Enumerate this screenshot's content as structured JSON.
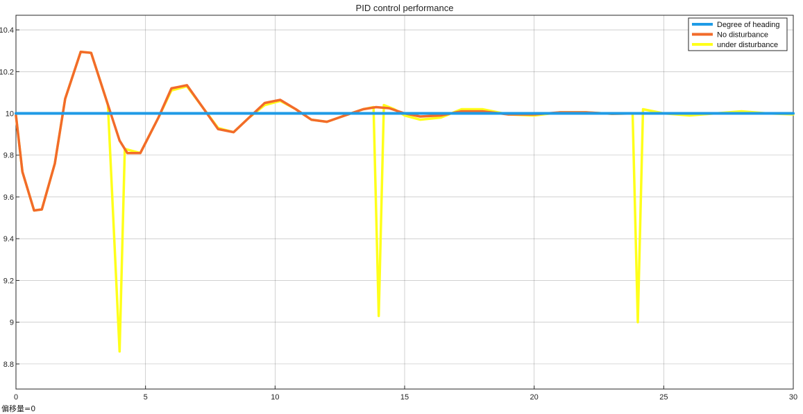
{
  "footer": {
    "offset_label": "偏移量=0"
  },
  "chart_data": {
    "type": "line",
    "title": "PID control performance",
    "xlabel": "",
    "ylabel": "",
    "xlim": [
      0,
      30
    ],
    "ylim": [
      8.68,
      10.47
    ],
    "xticks": [
      0,
      5,
      10,
      15,
      20,
      25,
      30
    ],
    "yticks": [
      8.8,
      9,
      9.2,
      9.4,
      9.6,
      9.8,
      10,
      10.2,
      10.4
    ],
    "grid": true,
    "legend_position": "top-right",
    "colors": {
      "heading": "#1f9be6",
      "no_disturbance": "#f26b2a",
      "under_disturbance": "#ffff1a"
    },
    "series": [
      {
        "name": "Degree of heading",
        "color": "#1f9be6",
        "x": [
          0,
          30
        ],
        "y": [
          10.0,
          10.0
        ]
      },
      {
        "name": "No disturbance",
        "color": "#f26b2a",
        "x": [
          0,
          0.25,
          0.7,
          1.0,
          1.5,
          1.9,
          2.5,
          2.9,
          3.5,
          4.0,
          4.3,
          4.8,
          5.5,
          6.0,
          6.6,
          7.2,
          7.8,
          8.4,
          9.0,
          9.6,
          10.2,
          10.8,
          11.4,
          12.0,
          12.7,
          13.4,
          13.9,
          14.4,
          15.0,
          15.6,
          16.4,
          17.2,
          18.0,
          19.0,
          20.0,
          21.0,
          22.0,
          23.0,
          24.0,
          25.0,
          26.0,
          27.0,
          28.0,
          29.0,
          30.0
        ],
        "y": [
          9.99,
          9.72,
          9.535,
          9.54,
          9.76,
          10.07,
          10.295,
          10.29,
          10.06,
          9.87,
          9.81,
          9.81,
          9.98,
          10.12,
          10.135,
          10.03,
          9.925,
          9.91,
          9.98,
          10.05,
          10.065,
          10.02,
          9.97,
          9.96,
          9.99,
          10.02,
          10.03,
          10.025,
          10.0,
          9.985,
          9.99,
          10.01,
          10.01,
          9.995,
          9.995,
          10.005,
          10.005,
          9.998,
          10.0,
          10.0,
          10.0,
          10.0,
          10.0,
          10.0,
          10.0
        ]
      },
      {
        "name": "under disturbance",
        "color": "#ffff1a",
        "x": [
          0,
          0.25,
          0.7,
          1.0,
          1.5,
          1.9,
          2.5,
          2.9,
          3.5,
          3.55,
          4.0,
          4.2,
          4.8,
          5.5,
          6.0,
          6.6,
          7.2,
          7.8,
          8.4,
          9.0,
          9.6,
          10.2,
          10.8,
          11.4,
          12.0,
          12.7,
          13.4,
          13.8,
          14.0,
          14.2,
          14.6,
          15.0,
          15.6,
          16.4,
          17.2,
          18.0,
          19.0,
          20.0,
          21.0,
          22.0,
          23.0,
          23.8,
          24.0,
          24.2,
          25.0,
          26.0,
          27.0,
          28.0,
          29.0,
          30.0
        ],
        "y": [
          9.99,
          9.72,
          9.535,
          9.54,
          9.76,
          10.07,
          10.295,
          10.29,
          10.06,
          10.04,
          8.86,
          9.83,
          9.81,
          9.98,
          10.11,
          10.13,
          10.03,
          9.93,
          9.91,
          9.98,
          10.04,
          10.06,
          10.02,
          9.97,
          9.96,
          9.99,
          10.02,
          10.03,
          9.03,
          10.04,
          10.02,
          9.99,
          9.97,
          9.98,
          10.02,
          10.02,
          9.995,
          9.99,
          10.005,
          10.005,
          9.998,
          10.0,
          9.0,
          10.02,
          10.0,
          9.99,
          10.0,
          10.01,
          10.0,
          9.995
        ]
      }
    ]
  }
}
